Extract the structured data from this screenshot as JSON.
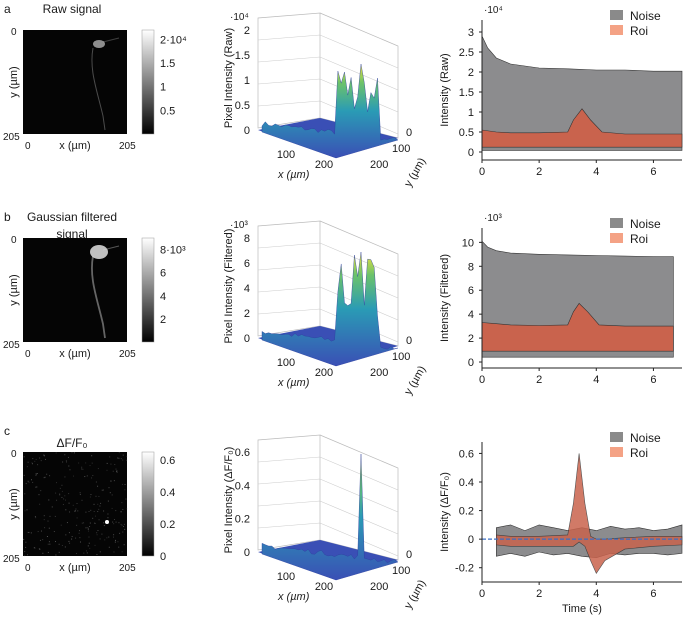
{
  "panels": [
    {
      "label": "a",
      "title_lines": [
        "Raw signal"
      ],
      "colorbar": {
        "ticks": [
          "2·10⁴",
          "1.5",
          "1",
          "0.5"
        ],
        "vmax": 2.2,
        "tick_values": [
          2,
          1.5,
          1,
          0.5
        ]
      },
      "image_axes": {
        "y0": "0",
        "y1": "205",
        "x0": "0",
        "x1": "205",
        "xlabel": "x (µm)",
        "ylabel": "y (µm)"
      },
      "surface": {
        "zlabel": "Pixel Intensity (Raw)",
        "zscale": "·10⁴",
        "zticks": [
          "2",
          "1.5",
          "1",
          "0.5",
          "0"
        ],
        "xticks": [
          "100",
          "200"
        ],
        "yticks": [
          "0",
          "100",
          "200"
        ],
        "xlabel": "x (µm)",
        "ylabel": "y (µm)"
      },
      "trace": {
        "ylabel": "Intensity (Raw)",
        "yscale": "·10⁴",
        "yticks": [
          "3",
          "2.5",
          "2",
          "1.5",
          "1",
          "0.5",
          "0"
        ],
        "xticks": [
          "0",
          "2",
          "4",
          "6"
        ],
        "legend": [
          "Noise",
          "Roi"
        ]
      }
    },
    {
      "label": "b",
      "title_lines": [
        "Gaussian filtered",
        "signal"
      ],
      "colorbar": {
        "ticks": [
          "8·10³",
          "6",
          "4",
          "2"
        ],
        "vmax": 9,
        "tick_values": [
          8,
          6,
          4,
          2
        ]
      },
      "image_axes": {
        "y0": "0",
        "y1": "205",
        "x0": "0",
        "x1": "205",
        "xlabel": "x (µm)",
        "ylabel": "y (µm)"
      },
      "surface": {
        "zlabel": "Pixel Intensity (Filtered)",
        "zscale": "·10³",
        "zticks": [
          "8",
          "6",
          "4",
          "2",
          "0"
        ],
        "xticks": [
          "100",
          "200"
        ],
        "yticks": [
          "0",
          "100",
          "200"
        ],
        "xlabel": "x (µm)",
        "ylabel": "y (µm)"
      },
      "trace": {
        "ylabel": "Intensity (Filtered)",
        "yscale": "·10³",
        "yticks": [
          "10",
          "8",
          "6",
          "4",
          "2",
          "0"
        ],
        "xticks": [
          "0",
          "2",
          "4",
          "6"
        ],
        "legend": [
          "Noise",
          "Roi"
        ]
      }
    },
    {
      "label": "c",
      "title_lines": [
        "ΔF/F₀"
      ],
      "colorbar": {
        "ticks": [
          "0.6",
          "0.4",
          "0.2",
          "0"
        ],
        "vmax": 0.65,
        "tick_values": [
          0.6,
          0.4,
          0.2,
          0
        ]
      },
      "image_axes": {
        "y0": "0",
        "y1": "205",
        "x0": "0",
        "x1": "205",
        "xlabel": "x (µm)",
        "ylabel": "y (µm)"
      },
      "surface": {
        "zlabel": "Pixel Intensity (ΔF/F₀)",
        "zscale": "",
        "zticks": [
          "0.6",
          "0.4",
          "0.2",
          "0"
        ],
        "xticks": [
          "100",
          "200"
        ],
        "yticks": [
          "0",
          "100",
          "200"
        ],
        "xlabel": "x (µm)",
        "ylabel": "y (µm)"
      },
      "trace": {
        "ylabel": "Intensity (ΔF/F₀)",
        "yscale": "",
        "yticks": [
          "0.6",
          "0.4",
          "0.2",
          "0",
          "-0.2"
        ],
        "xticks": [
          "0",
          "2",
          "4",
          "6"
        ],
        "xlabel": "Time (s)",
        "legend": [
          "Noise",
          "Roi"
        ]
      }
    }
  ],
  "colors": {
    "noise": "#8c8c8e",
    "roi": "#c9634d",
    "noise_legend": "#8a8a8a",
    "roi_legend": "#f4a285",
    "surface_low": "#3a4fb5",
    "surface_high": "#f2e23a",
    "dff_line": "#3b6fc4"
  },
  "chart_data": [
    {
      "type": "area",
      "title": "",
      "ylabel": "Intensity (Raw)",
      "xlim": [
        0,
        7
      ],
      "ylim": [
        -0.2,
        3.3
      ],
      "series": [
        {
          "name": "Noise",
          "x": [
            0,
            0.2,
            0.5,
            1,
            2,
            3,
            4,
            5,
            6,
            7
          ],
          "upper": [
            2.9,
            2.6,
            2.35,
            2.2,
            2.1,
            2.08,
            2.05,
            2.05,
            2.02,
            2.02
          ],
          "lower": [
            0.04,
            0.04,
            0.04,
            0.04,
            0.04,
            0.04,
            0.04,
            0.04,
            0.04,
            0.04
          ]
        },
        {
          "name": "Roi",
          "x": [
            0,
            0.5,
            1,
            2,
            3,
            3.2,
            3.5,
            3.8,
            4.2,
            5,
            6,
            7
          ],
          "upper": [
            0.55,
            0.5,
            0.48,
            0.48,
            0.5,
            0.8,
            1.08,
            0.8,
            0.5,
            0.45,
            0.45,
            0.45
          ],
          "lower": [
            0.12,
            0.12,
            0.12,
            0.12,
            0.12,
            0.12,
            0.12,
            0.12,
            0.12,
            0.12,
            0.12,
            0.12
          ]
        }
      ]
    },
    {
      "type": "area",
      "title": "",
      "ylabel": "Intensity (Filtered)",
      "xlim": [
        0,
        7
      ],
      "ylim": [
        -0.5,
        11.2
      ],
      "series": [
        {
          "name": "Noise",
          "x": [
            0,
            0.2,
            0.5,
            1,
            2,
            3,
            4,
            5,
            6,
            6.7
          ],
          "upper": [
            10.1,
            9.6,
            9.3,
            9.1,
            9.0,
            8.95,
            8.9,
            8.85,
            8.82,
            8.8
          ],
          "lower": [
            0.4,
            0.4,
            0.4,
            0.4,
            0.4,
            0.4,
            0.4,
            0.4,
            0.4,
            0.4
          ]
        },
        {
          "name": "Roi",
          "x": [
            0,
            0.5,
            1,
            2,
            3,
            3.2,
            3.4,
            3.7,
            4.1,
            5,
            6,
            6.7
          ],
          "upper": [
            3.3,
            3.2,
            3.1,
            3.05,
            3.1,
            4.2,
            4.9,
            4.2,
            3.1,
            3.0,
            3.0,
            3.0
          ],
          "lower": [
            0.9,
            0.9,
            0.9,
            0.9,
            0.9,
            0.9,
            0.9,
            0.9,
            0.9,
            0.9,
            0.9,
            0.9
          ]
        }
      ]
    },
    {
      "type": "area",
      "title": "",
      "xlabel": "Time (s)",
      "ylabel": "Intensity (ΔF/F₀)",
      "xlim": [
        0,
        7
      ],
      "ylim": [
        -0.3,
        0.68
      ],
      "series": [
        {
          "name": "Noise",
          "x": [
            0.5,
            1,
            1.5,
            2,
            2.5,
            3,
            3.5,
            4,
            4.5,
            5,
            5.5,
            6,
            6.5,
            7
          ],
          "upper": [
            0.08,
            0.1,
            0.06,
            0.1,
            0.08,
            0.06,
            0.08,
            0.06,
            0.09,
            0.07,
            0.08,
            0.06,
            0.07,
            0.1
          ],
          "lower": [
            -0.12,
            -0.1,
            -0.12,
            -0.09,
            -0.11,
            -0.1,
            -0.12,
            -0.13,
            -0.1,
            -0.11,
            -0.1,
            -0.1,
            -0.11,
            -0.1
          ]
        },
        {
          "name": "Roi",
          "x": [
            0.5,
            1,
            2,
            3,
            3.2,
            3.4,
            3.6,
            3.8,
            4,
            4.3,
            5,
            6,
            7
          ],
          "upper": [
            0.03,
            0.02,
            0.02,
            0.03,
            0.25,
            0.6,
            0.25,
            0.02,
            0.0,
            0.0,
            0.01,
            0.02,
            0.02
          ],
          "lower": [
            -0.04,
            -0.05,
            -0.05,
            -0.05,
            -0.05,
            -0.02,
            -0.05,
            -0.15,
            -0.24,
            -0.15,
            -0.07,
            -0.05,
            -0.04
          ]
        }
      ]
    }
  ]
}
